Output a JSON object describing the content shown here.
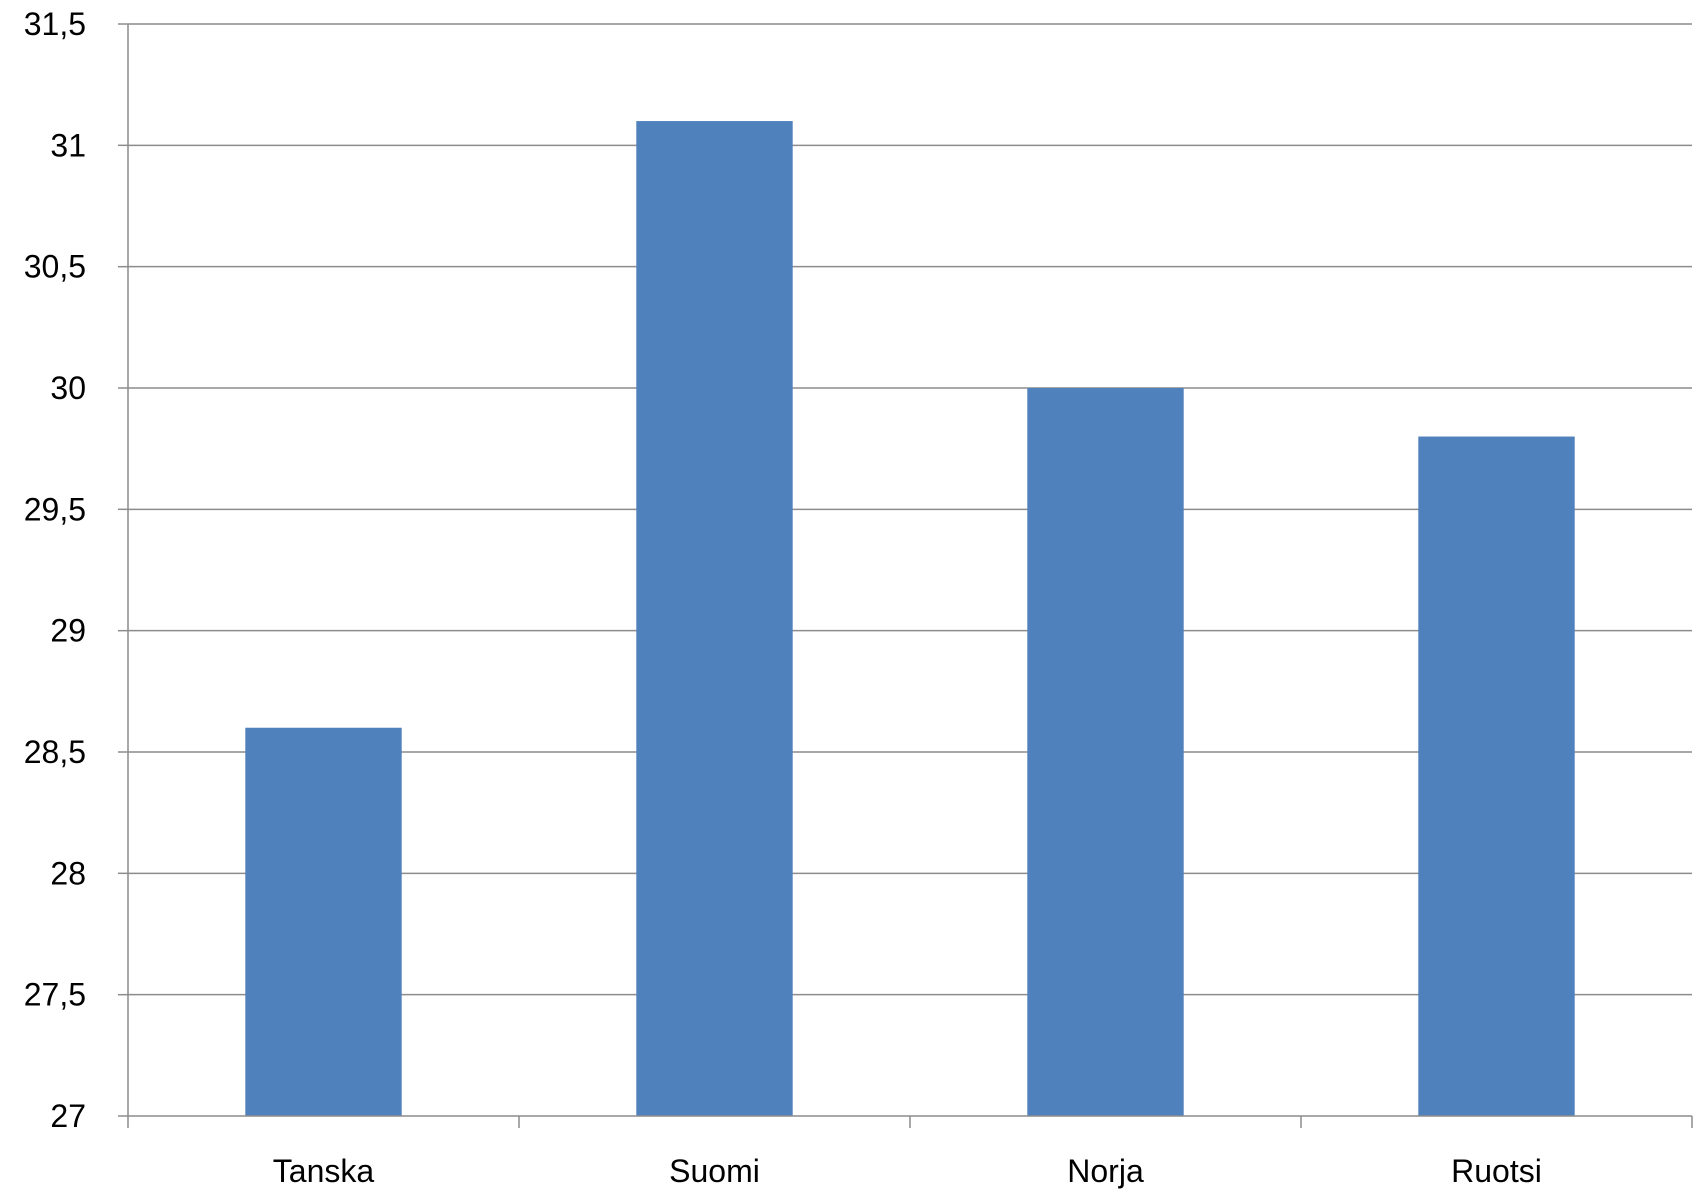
{
  "chart_data": {
    "type": "bar",
    "categories": [
      "Tanska",
      "Suomi",
      "Norja",
      "Ruotsi"
    ],
    "values": [
      28.6,
      31.1,
      30.0,
      29.8
    ],
    "ylim": [
      27,
      31.5
    ],
    "y_ticks": [
      27,
      27.5,
      28,
      28.5,
      29,
      29.5,
      30,
      30.5,
      31,
      31.5
    ],
    "y_tick_labels": [
      "27",
      "27,5",
      "28",
      "28,5",
      "29",
      "29,5",
      "30",
      "30,5",
      "31",
      "31,5"
    ],
    "grid": true,
    "legend": "none",
    "bar_color": "#4f81bd",
    "grid_color": "#8c8c8c"
  }
}
